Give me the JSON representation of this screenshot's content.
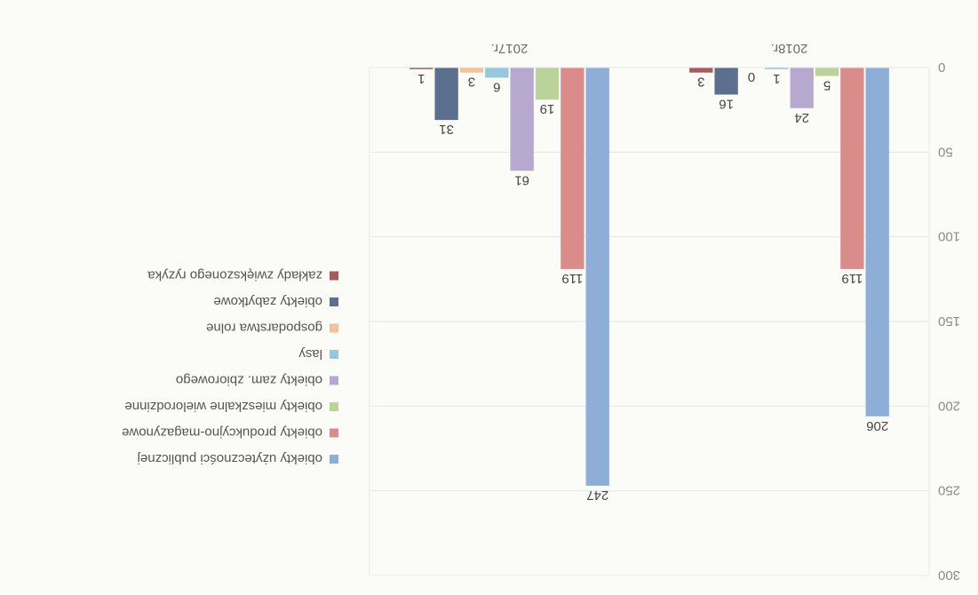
{
  "chart_data": {
    "type": "bar",
    "categories": [
      "2018r.",
      "2017r."
    ],
    "ylim": [
      0,
      300
    ],
    "yticks": [
      0,
      50,
      100,
      150,
      200,
      250,
      300
    ],
    "grid": true,
    "legend_position": "right",
    "series": [
      {
        "name": "obiekty użyteczności publicznej",
        "color": "#8eaed8",
        "values": [
          206,
          247
        ]
      },
      {
        "name": "obiekty produkcyjno-magazynowe",
        "color": "#d98c8a",
        "values": [
          119,
          119
        ]
      },
      {
        "name": "obiekty mieszkalne wielorodzinne",
        "color": "#b9d39a",
        "values": [
          5,
          19
        ]
      },
      {
        "name": "obiekty zam. zbiorowego",
        "color": "#b6a8cf",
        "values": [
          24,
          61
        ]
      },
      {
        "name": "lasy",
        "color": "#96c7dc",
        "values": [
          1,
          6
        ]
      },
      {
        "name": "gospodarstwa rolne",
        "color": "#f3c29a",
        "values": [
          0,
          3
        ]
      },
      {
        "name": "obiekty zabytkowe",
        "color": "#5d6f8e",
        "values": [
          16,
          31
        ]
      },
      {
        "name": "zakłady zwiększonego ryzyka",
        "color": "#a85a5a",
        "values": [
          3,
          1
        ]
      }
    ]
  }
}
